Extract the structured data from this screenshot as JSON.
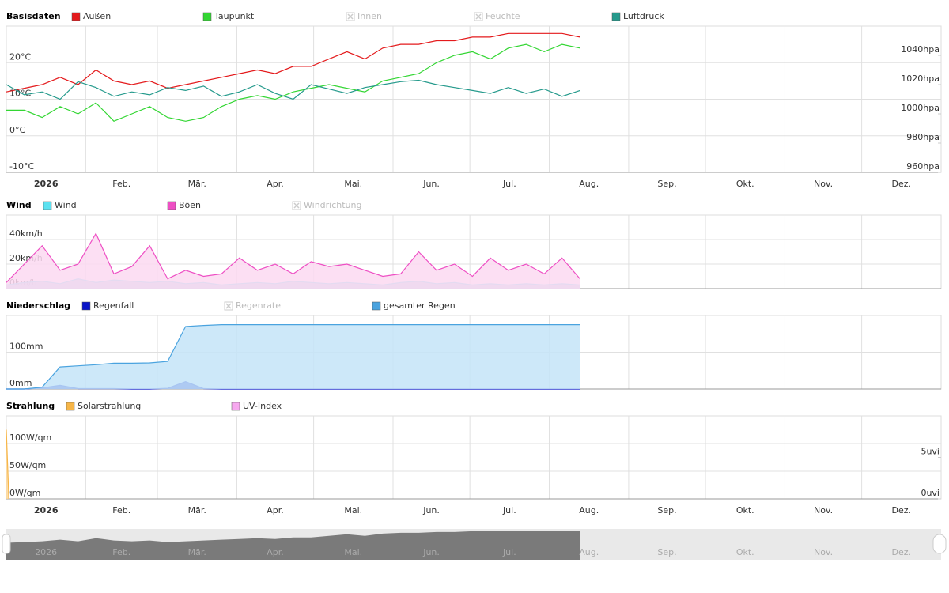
{
  "chart_data": [
    {
      "type": "line",
      "title": "Basisdaten",
      "xlim": [
        0,
        365
      ],
      "xticks": [
        {
          "value": 0,
          "label": "2026"
        },
        {
          "value": 31,
          "label": "Feb."
        },
        {
          "value": 59,
          "label": "Mär."
        },
        {
          "value": 90,
          "label": "Apr."
        },
        {
          "value": 120,
          "label": "Mai."
        },
        {
          "value": 151,
          "label": "Jun."
        },
        {
          "value": 181,
          "label": "Jul."
        },
        {
          "value": 212,
          "label": "Aug."
        },
        {
          "value": 243,
          "label": "Sep."
        },
        {
          "value": 273,
          "label": "Okt."
        },
        {
          "value": 304,
          "label": "Nov."
        },
        {
          "value": 334,
          "label": "Dez."
        }
      ],
      "x": [
        0,
        7,
        14,
        21,
        28,
        35,
        42,
        49,
        56,
        63,
        70,
        77,
        84,
        91,
        98,
        105,
        112,
        119,
        126,
        133,
        140,
        147,
        154,
        161,
        168,
        175,
        182,
        189,
        196,
        203,
        210,
        217,
        224
      ],
      "ylim": [
        -10,
        30
      ],
      "yticks": [
        {
          "value": -10,
          "label": "-10°C"
        },
        {
          "value": 0,
          "label": "0°C"
        },
        {
          "value": 10,
          "label": "10°C"
        },
        {
          "value": 20,
          "label": "20°C"
        }
      ],
      "y2lim": [
        960,
        1060
      ],
      "y2ticks": [
        {
          "value": 960,
          "label": "960hpa"
        },
        {
          "value": 980,
          "label": "980hpa"
        },
        {
          "value": 1000,
          "label": "1000hpa"
        },
        {
          "value": 1020,
          "label": "1020hpa"
        },
        {
          "value": 1040,
          "label": "1040hpa"
        }
      ],
      "grid": true,
      "series": [
        {
          "name": "Außen",
          "color": "#e41a1c",
          "values": [
            12,
            13,
            14,
            16,
            14,
            18,
            15,
            14,
            15,
            13,
            14,
            15,
            16,
            17,
            18,
            17,
            19,
            19,
            21,
            23,
            21,
            24,
            25,
            25,
            26,
            26,
            27,
            27,
            28,
            28,
            28,
            28,
            27
          ]
        },
        {
          "name": "Taupunkt",
          "color": "#33d633",
          "values": [
            7,
            7,
            5,
            8,
            6,
            9,
            4,
            6,
            8,
            5,
            4,
            5,
            8,
            10,
            11,
            10,
            12,
            13,
            14,
            13,
            12,
            15,
            16,
            17,
            20,
            22,
            23,
            21,
            24,
            25,
            23,
            25,
            24
          ]
        },
        {
          "name": "Innen",
          "color": "#cccccc",
          "visible": false
        },
        {
          "name": "Feuchte",
          "color": "#cccccc",
          "visible": false
        },
        {
          "name": "Luftdruck",
          "color": "#259a8c",
          "axis": "y2",
          "values": [
            1020,
            1013,
            1015,
            1010,
            1022,
            1018,
            1012,
            1015,
            1013,
            1018,
            1016,
            1019,
            1012,
            1015,
            1020,
            1014,
            1010,
            1020,
            1017,
            1014,
            1018,
            1020,
            1022,
            1023,
            1020,
            1018,
            1016,
            1014,
            1018,
            1014,
            1017,
            1012,
            1016
          ]
        }
      ]
    },
    {
      "type": "area",
      "title": "Wind",
      "ylim": [
        0,
        60
      ],
      "yticks": [
        {
          "value": 0,
          "label": "0km/h"
        },
        {
          "value": 20,
          "label": "20km/h"
        },
        {
          "value": 40,
          "label": "40km/h"
        }
      ],
      "grid": true,
      "series": [
        {
          "name": "Wind",
          "color": "#5ce1f0",
          "fill": "#9fd6e8",
          "values": [
            3,
            5,
            6,
            4,
            8,
            5,
            7,
            6,
            5,
            6,
            4,
            5,
            3,
            4,
            5,
            4,
            6,
            5,
            4,
            5,
            4,
            3,
            5,
            6,
            4,
            5,
            3,
            4,
            3,
            4,
            3,
            4,
            3
          ]
        },
        {
          "name": "Böen",
          "color": "#ee4fc4",
          "fill": "#fbd9f1",
          "values": [
            5,
            20,
            35,
            15,
            20,
            45,
            12,
            18,
            35,
            8,
            15,
            10,
            12,
            25,
            15,
            20,
            12,
            22,
            18,
            20,
            15,
            10,
            12,
            30,
            15,
            20,
            10,
            25,
            15,
            20,
            12,
            25,
            8
          ]
        },
        {
          "name": "Windrichtung",
          "color": "#cccccc",
          "visible": false
        }
      ]
    },
    {
      "type": "area",
      "title": "Niederschlag",
      "ylim": [
        0,
        200
      ],
      "yticks": [
        {
          "value": 0,
          "label": "0mm"
        },
        {
          "value": 100,
          "label": "100mm"
        }
      ],
      "grid": true,
      "series": [
        {
          "name": "Regenfall",
          "color": "#0a14c8",
          "fill": "#0a14c8",
          "values": [
            0,
            0,
            3,
            10,
            1,
            1,
            1,
            0,
            0,
            2,
            20,
            1,
            0,
            0,
            0,
            0,
            0,
            0,
            0,
            0,
            0,
            0,
            0,
            0,
            0,
            0,
            0,
            0,
            0,
            0,
            0,
            0,
            0
          ]
        },
        {
          "name": "Regenrate",
          "color": "#cccccc",
          "visible": false
        },
        {
          "name": "gesamter Regen",
          "color": "#4aa3df",
          "fill": "#c4e4f8",
          "values": [
            0,
            0,
            5,
            60,
            63,
            66,
            70,
            70,
            71,
            75,
            170,
            173,
            175,
            175,
            175,
            175,
            175,
            175,
            175,
            175,
            175,
            175,
            175,
            175,
            175,
            175,
            175,
            175,
            175,
            175,
            175,
            175,
            175
          ]
        }
      ]
    },
    {
      "type": "area",
      "title": "Strahlung",
      "ylim": [
        0,
        150
      ],
      "yticks": [
        {
          "value": 0,
          "label": "0W/qm"
        },
        {
          "value": 50,
          "label": "50W/qm"
        },
        {
          "value": 100,
          "label": "100W/qm"
        }
      ],
      "y2lim": [
        0,
        10
      ],
      "y2ticks": [
        {
          "value": 0,
          "label": "0uvi"
        },
        {
          "value": 5,
          "label": "5uvi"
        }
      ],
      "grid": true,
      "series": [
        {
          "name": "Solarstrahlung",
          "color": "#f7b648",
          "fill": "#fbd79a",
          "x": [
            0,
            1
          ],
          "values": [
            125,
            0
          ]
        },
        {
          "name": "UV-Index",
          "color": "#f7a8ef",
          "axis": "y2"
        }
      ]
    }
  ]
}
